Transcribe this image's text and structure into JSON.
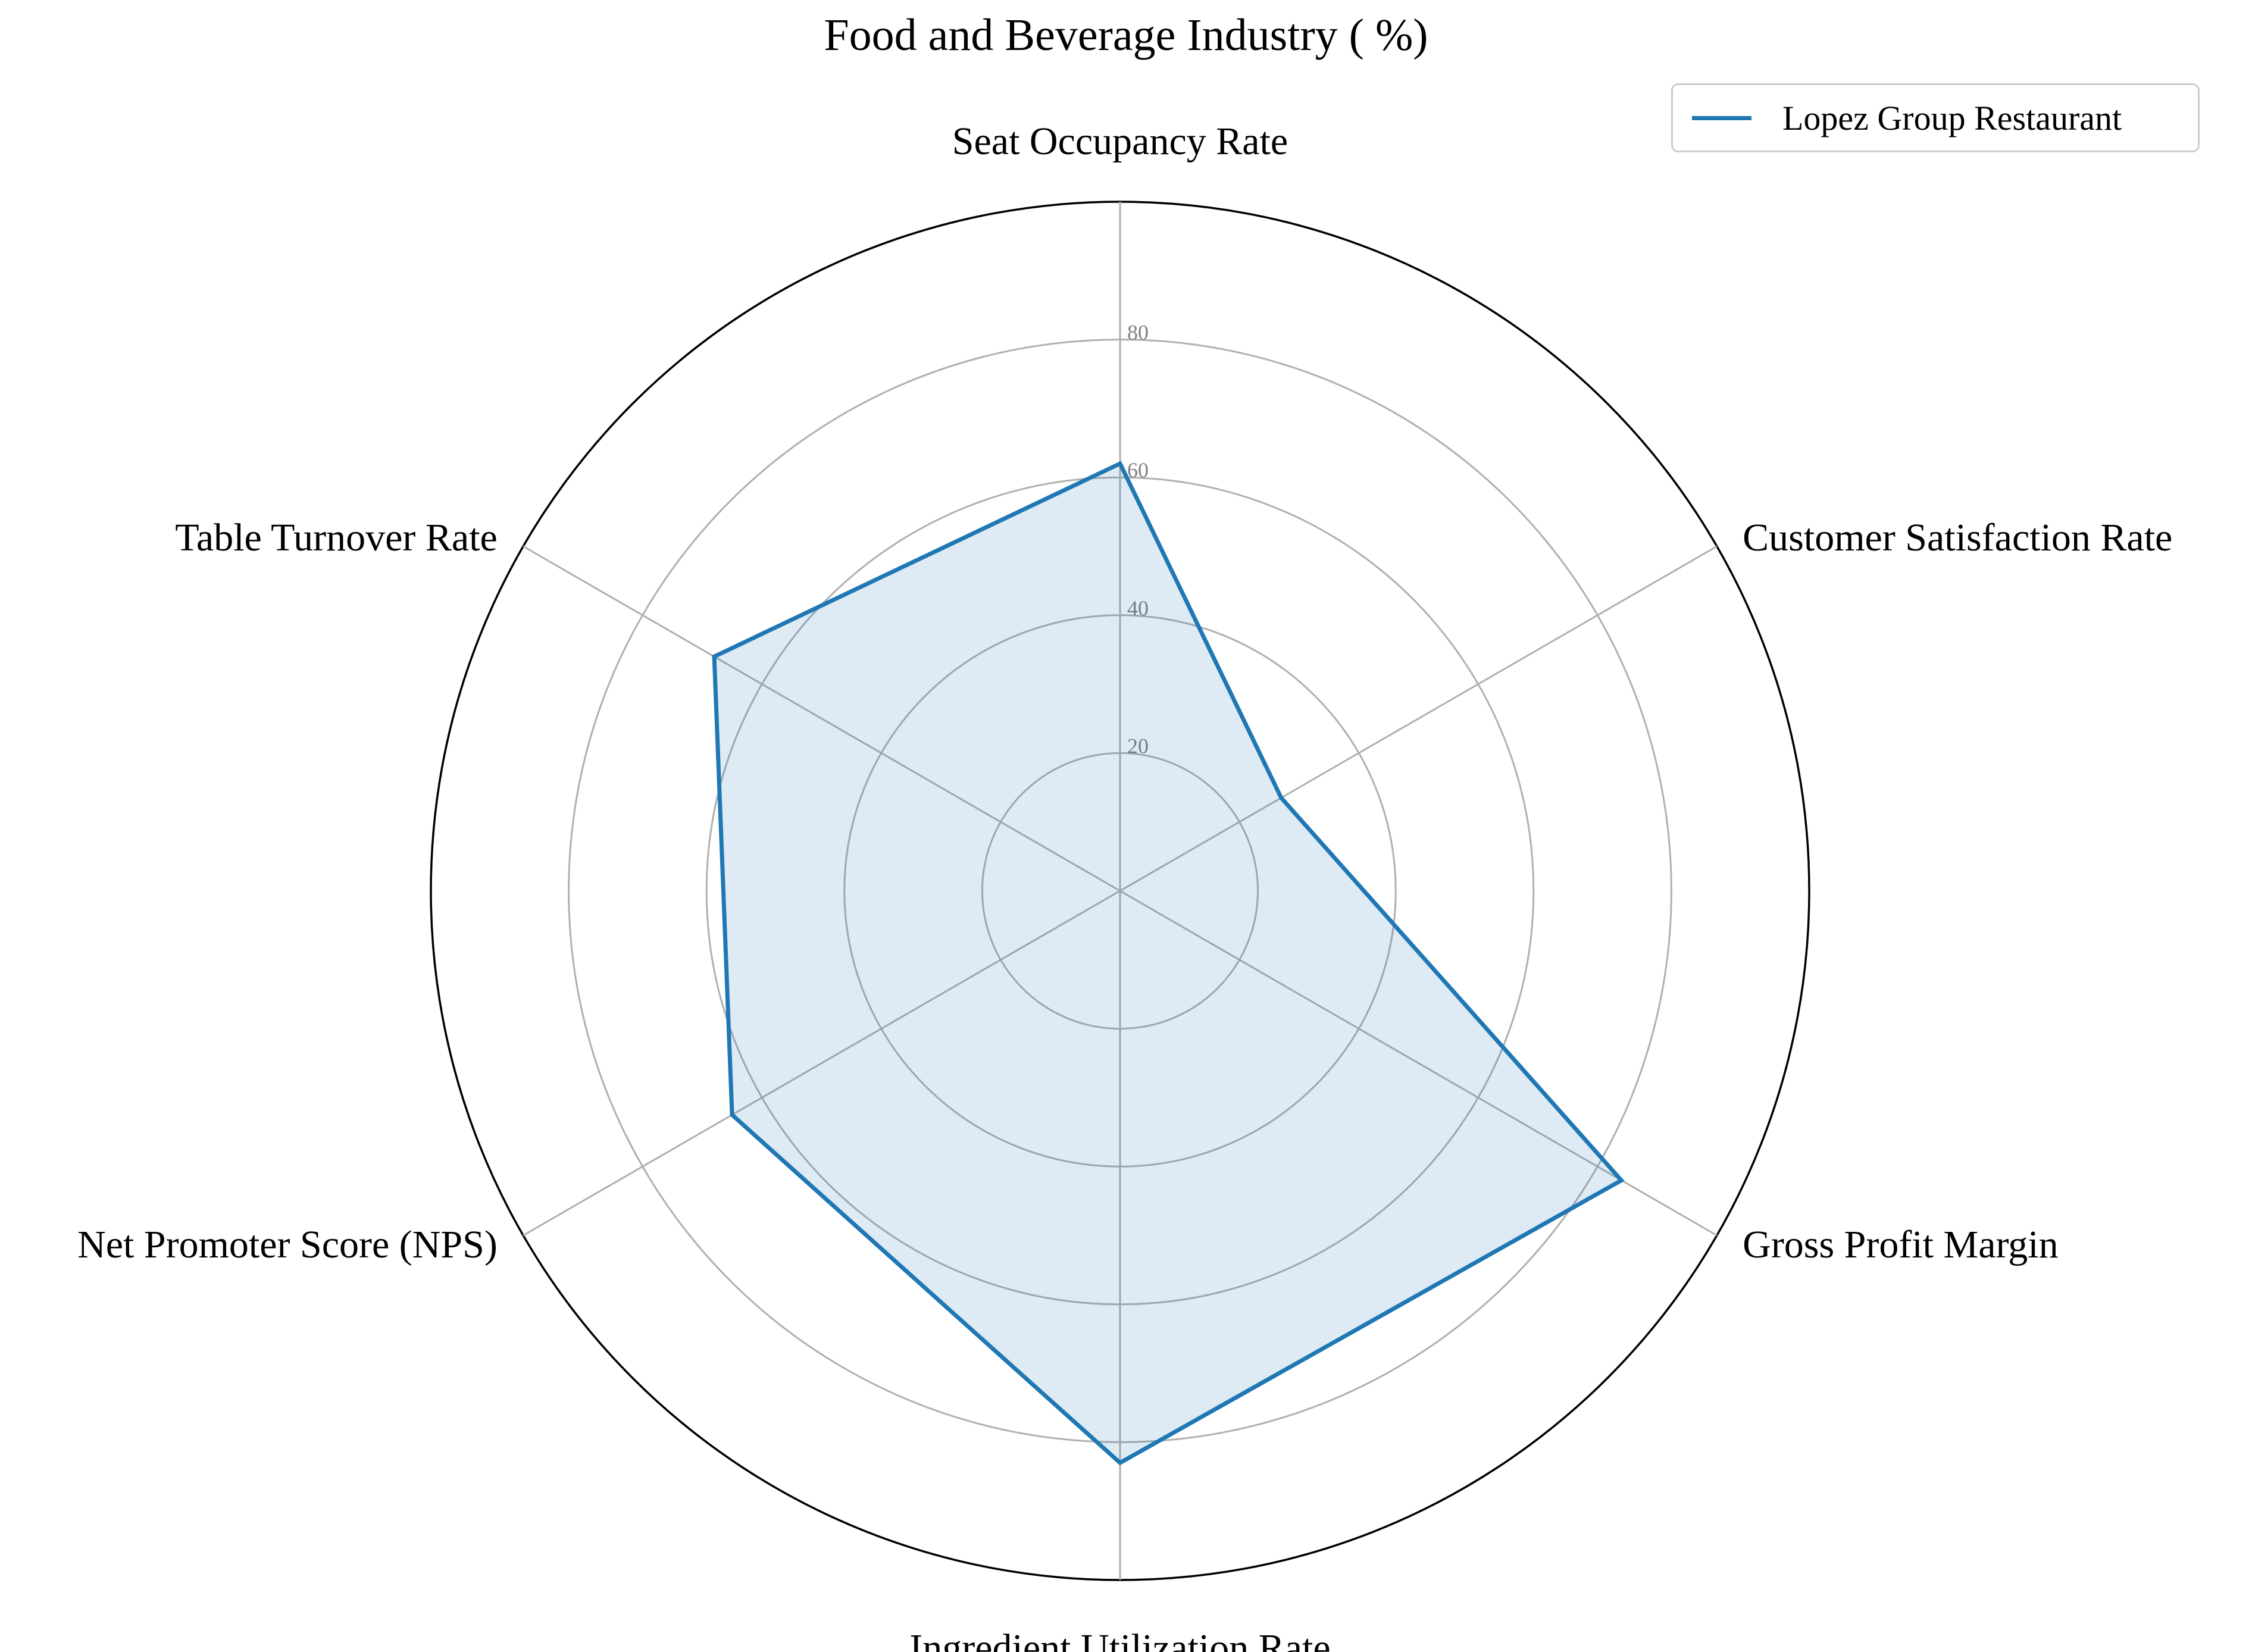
{
  "chart_data": {
    "type": "radar",
    "title": "Food and Beverage Industry ( %)",
    "axes": [
      "Seat Occupancy Rate",
      "Customer Satisfaction Rate",
      "Gross Profit Margin",
      "Ingredient Utilization Rate",
      "Net Promoter Score (NPS)",
      "Table Turnover Rate"
    ],
    "radial_ticks": [
      20,
      40,
      60,
      80
    ],
    "rmax": 100,
    "grid": true,
    "legend_position": "top-right",
    "series": [
      {
        "name": "Lopez Group Restaurant",
        "color": "#1f77b4",
        "values": [
          62,
          27,
          84,
          83,
          65,
          68
        ]
      }
    ]
  }
}
